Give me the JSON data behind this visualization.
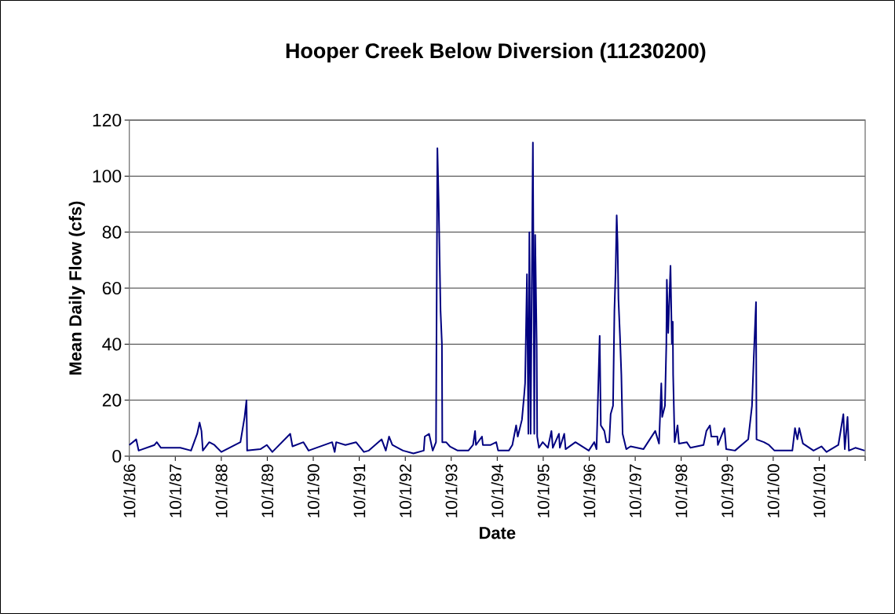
{
  "chart_data": {
    "type": "line",
    "title": "Hooper Creek Below Diversion (11230200)",
    "xlabel": "Date",
    "ylabel": "Mean Daily Flow (cfs)",
    "color": "#000080",
    "line_style": "solid",
    "grid": "y",
    "xlim": [
      "1986-10-01",
      "2002-10-01"
    ],
    "xticks": [
      {
        "value": "1986-10-01",
        "label": "10/1/86"
      },
      {
        "value": "1987-10-01",
        "label": "10/1/87"
      },
      {
        "value": "1988-10-01",
        "label": "10/1/88"
      },
      {
        "value": "1989-10-01",
        "label": "10/1/89"
      },
      {
        "value": "1990-10-01",
        "label": "10/1/90"
      },
      {
        "value": "1991-10-01",
        "label": "10/1/91"
      },
      {
        "value": "1992-10-01",
        "label": "10/1/92"
      },
      {
        "value": "1993-10-01",
        "label": "10/1/93"
      },
      {
        "value": "1994-10-01",
        "label": "10/1/94"
      },
      {
        "value": "1995-10-01",
        "label": "10/1/95"
      },
      {
        "value": "1996-10-01",
        "label": "10/1/96"
      },
      {
        "value": "1997-10-01",
        "label": "10/1/97"
      },
      {
        "value": "1998-10-01",
        "label": "10/1/98"
      },
      {
        "value": "1999-10-01",
        "label": "10/1/99"
      },
      {
        "value": "2000-10-01",
        "label": "10/1/00"
      },
      {
        "value": "2001-10-01",
        "label": "10/1/01"
      },
      {
        "value": "2002-10-01",
        "label": null
      }
    ],
    "ylim": [
      0,
      120
    ],
    "yticks": [
      0,
      20,
      40,
      60,
      80,
      100,
      120
    ],
    "x": [
      "1986-10-01",
      "1986-11-25",
      "1986-12-14",
      "1987-04-19",
      "1987-05-07",
      "1987-06-09",
      "1987-11-10",
      "1988-02-03",
      "1988-03-23",
      "1988-04-11",
      "1988-04-26",
      "1988-05-07",
      "1988-06-27",
      "1988-08-07",
      "1988-10-01",
      "1989-03-02",
      "1989-04-04",
      "1989-04-19",
      "1989-04-24",
      "1989-08-07",
      "1989-09-27",
      "1989-11-10",
      "1990-04-01",
      "1990-04-19",
      "1990-07-15",
      "1990-08-25",
      "1991-02-28",
      "1991-03-20",
      "1991-04-01",
      "1991-06-13",
      "1991-09-05",
      "1991-11-07",
      "1991-12-16",
      "1992-03-27",
      "1992-04-29",
      "1992-05-25",
      "1992-06-20",
      "1992-09-13",
      "1992-12-05",
      "1993-02-25",
      "1993-03-05",
      "1993-04-08",
      "1993-05-07",
      "1993-06-02",
      "1993-06-13",
      "1993-06-23",
      "1993-07-08",
      "1993-07-19",
      "1993-07-22",
      "1993-08-21",
      "1993-09-20",
      "1993-11-21",
      "1994-02-14",
      "1994-03-23",
      "1994-04-08",
      "1994-04-15",
      "1994-06-02",
      "1994-06-09",
      "1994-08-10",
      "1994-09-23",
      "1994-10-08",
      "1995-01-01",
      "1995-01-29",
      "1995-02-28",
      "1995-03-13",
      "1995-04-15",
      "1995-05-03",
      "1995-05-10",
      "1995-05-25",
      "1995-06-05",
      "1995-06-13",
      "1995-06-23",
      "1995-07-11",
      "1995-07-22",
      "1995-07-29",
      "1995-08-10",
      "1995-08-14",
      "1995-08-28",
      "1995-09-27",
      "1995-11-07",
      "1995-12-05",
      "1995-12-16",
      "1996-02-03",
      "1996-02-10",
      "1996-03-16",
      "1996-03-27",
      "1996-06-13",
      "1996-09-27",
      "1996-11-10",
      "1996-11-28",
      "1996-12-23",
      "1997-01-01",
      "1997-01-29",
      "1997-02-14",
      "1997-03-09",
      "1997-03-20",
      "1997-04-08",
      "1997-04-19",
      "1997-04-29",
      "1997-05-07",
      "1997-05-14",
      "1997-05-21",
      "1997-06-02",
      "1997-06-13",
      "1997-06-23",
      "1997-07-22",
      "1997-08-25",
      "1997-12-05",
      "1998-03-09",
      "1998-04-08",
      "1998-04-26",
      "1998-05-03",
      "1998-05-25",
      "1998-06-05",
      "1998-06-09",
      "1998-06-20",
      "1998-07-08",
      "1998-07-19",
      "1998-07-26",
      "1998-07-29",
      "1998-08-10",
      "1998-09-02",
      "1998-09-13",
      "1998-11-14",
      "1998-12-13",
      "1999-03-27",
      "1999-04-19",
      "1999-05-17",
      "1999-05-28",
      "1999-07-15",
      "1999-07-19",
      "1999-09-09",
      "1999-09-23",
      "1999-12-02",
      "2000-03-16",
      "2000-04-15",
      "2000-04-29",
      "2000-05-17",
      "2000-05-21",
      "2000-07-19",
      "2000-08-28",
      "2000-10-11",
      "2001-03-02",
      "2001-03-23",
      "2001-04-11",
      "2001-04-26",
      "2001-05-25",
      "2001-08-17",
      "2001-10-19",
      "2001-11-28",
      "2002-03-02",
      "2002-04-11",
      "2002-04-22",
      "2002-05-14",
      "2002-05-25",
      "2002-07-15",
      "2002-09-27"
    ],
    "values": [
      4,
      6,
      2,
      4,
      5,
      3,
      3,
      2,
      8,
      12,
      9,
      2,
      5,
      4,
      1.5,
      5,
      14,
      20,
      2,
      2.5,
      4,
      1.5,
      8,
      3.5,
      5,
      2,
      5,
      1.5,
      5,
      4,
      5,
      1.5,
      2,
      6,
      2,
      7,
      4,
      2,
      1,
      2,
      7,
      8,
      2,
      5,
      110,
      91,
      52,
      40,
      5,
      5,
      3.5,
      2,
      2,
      4,
      9,
      4,
      7,
      4,
      4,
      5,
      2,
      2,
      4,
      11,
      7,
      13,
      22,
      26,
      65,
      8,
      80,
      8,
      112,
      8,
      79,
      40,
      7,
      3,
      5,
      3,
      9,
      3,
      8,
      3,
      8,
      2.5,
      5,
      2,
      5,
      2.5,
      43,
      11,
      9,
      5,
      5,
      15,
      18,
      52,
      67,
      86,
      76,
      56,
      43,
      29,
      8,
      2.5,
      3.5,
      2.5,
      9,
      4.5,
      26,
      14,
      18,
      40,
      63,
      44,
      68,
      40,
      48,
      29,
      5,
      11,
      4.5,
      5,
      3,
      4,
      9,
      11,
      7,
      7,
      4,
      10,
      2.5,
      2,
      6,
      18,
      35,
      55,
      6,
      5,
      4,
      2,
      2,
      10,
      6,
      10,
      4.5,
      2,
      3.5,
      1.5,
      4,
      15,
      2.5,
      14,
      2,
      3,
      2
    ]
  }
}
